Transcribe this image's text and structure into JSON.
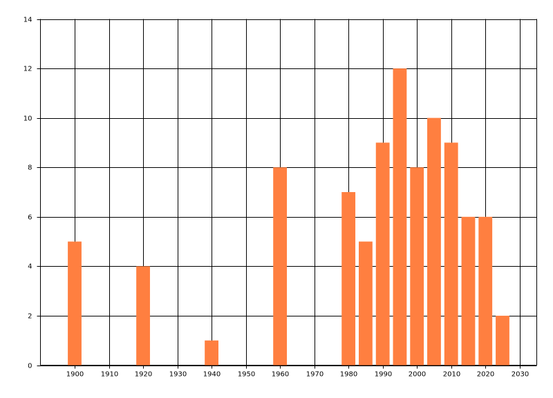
{
  "chart_data": {
    "type": "bar",
    "x": [
      1900,
      1920,
      1940,
      1960,
      1980,
      1985,
      1990,
      1995,
      2000,
      2005,
      2010,
      2015,
      2020,
      2025
    ],
    "values": [
      5,
      4,
      1,
      8,
      7,
      5,
      9,
      12,
      8,
      10,
      9,
      6,
      6,
      2
    ],
    "color": "#ff7f40",
    "xlim": [
      1890,
      2035
    ],
    "xticks": [
      1900,
      1910,
      1920,
      1930,
      1940,
      1950,
      1960,
      1970,
      1980,
      1990,
      2000,
      2010,
      2020,
      2030
    ],
    "ylim": [
      0,
      14
    ],
    "yticks": [
      0,
      2,
      4,
      6,
      8,
      10,
      12,
      14
    ],
    "grid": true
  }
}
